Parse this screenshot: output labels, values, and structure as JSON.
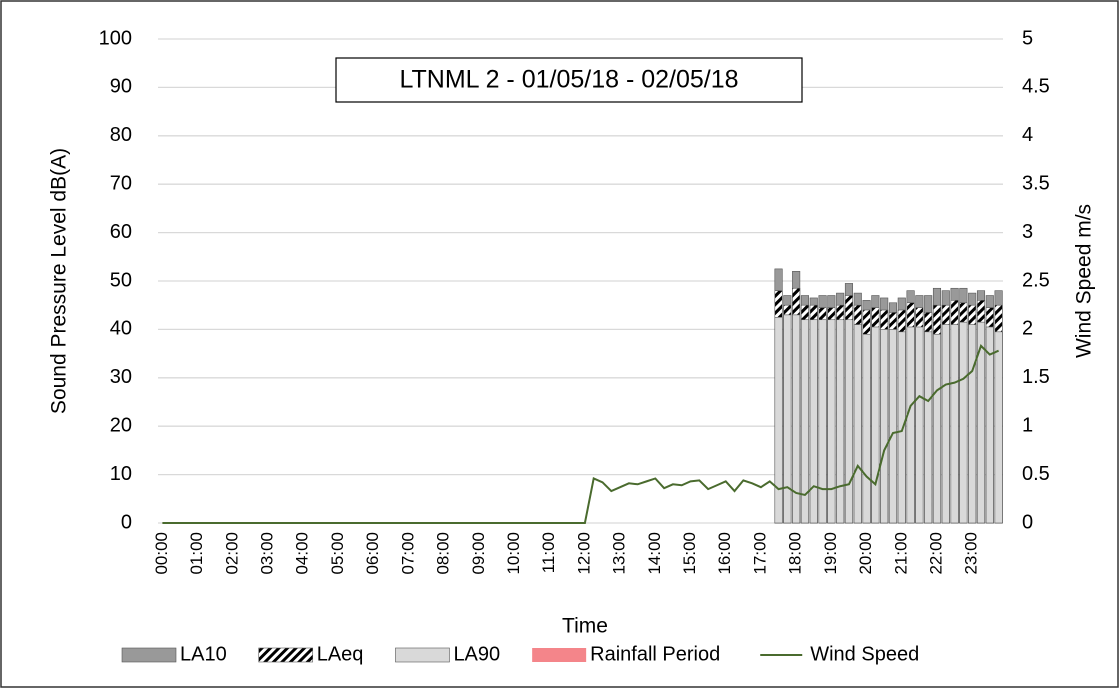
{
  "chart_data": {
    "type": "combo",
    "title": "LTNML 2 - 01/05/18 - 02/05/18",
    "x_label": "Time",
    "y_label": "Sound Pressure Level dB(A)",
    "y2_label": "Wind Speed m/s",
    "categories": [
      "00:00",
      null,
      null,
      null,
      "01:00",
      null,
      null,
      null,
      "02:00",
      null,
      null,
      null,
      "03:00",
      null,
      null,
      null,
      "04:00",
      null,
      null,
      null,
      "05:00",
      null,
      null,
      null,
      "06:00",
      null,
      null,
      null,
      "07:00",
      null,
      null,
      null,
      "08:00",
      null,
      null,
      null,
      "09:00",
      null,
      null,
      null,
      "10:00",
      null,
      null,
      null,
      "11:00",
      null,
      null,
      null,
      "12:00",
      null,
      null,
      null,
      "13:00",
      null,
      null,
      null,
      "14:00",
      null,
      null,
      null,
      "15:00",
      null,
      null,
      null,
      "16:00",
      null,
      null,
      null,
      "17:00",
      null,
      null,
      null,
      "18:00",
      null,
      null,
      null,
      "19:00",
      null,
      null,
      null,
      "20:00",
      null,
      null,
      null,
      "21:00",
      null,
      null,
      null,
      "22:00",
      null,
      null,
      null,
      "23:00",
      null,
      null,
      null
    ],
    "series": [
      {
        "name": "LA10",
        "type": "bar",
        "color": "#999999",
        "values": [
          null,
          null,
          null,
          null,
          null,
          null,
          null,
          null,
          null,
          null,
          null,
          null,
          null,
          null,
          null,
          null,
          null,
          null,
          null,
          null,
          null,
          null,
          null,
          null,
          null,
          null,
          null,
          null,
          null,
          null,
          null,
          null,
          null,
          null,
          null,
          null,
          null,
          null,
          null,
          null,
          null,
          null,
          null,
          null,
          null,
          null,
          null,
          null,
          null,
          null,
          null,
          null,
          null,
          null,
          null,
          null,
          null,
          null,
          null,
          null,
          null,
          null,
          null,
          null,
          null,
          null,
          null,
          null,
          null,
          null,
          52.5,
          47,
          52,
          47,
          46.5,
          47,
          47,
          47.5,
          49.5,
          47.5,
          46,
          47,
          46.5,
          45.5,
          46.5,
          48,
          47,
          47,
          48.5,
          48,
          48.5,
          48.5,
          47.5,
          48,
          47,
          48
        ]
      },
      {
        "name": "LAeq",
        "type": "bar",
        "color": "#000000",
        "pattern": "hatch",
        "values": [
          null,
          null,
          null,
          null,
          null,
          null,
          null,
          null,
          null,
          null,
          null,
          null,
          null,
          null,
          null,
          null,
          null,
          null,
          null,
          null,
          null,
          null,
          null,
          null,
          null,
          null,
          null,
          null,
          null,
          null,
          null,
          null,
          null,
          null,
          null,
          null,
          null,
          null,
          null,
          null,
          null,
          null,
          null,
          null,
          null,
          null,
          null,
          null,
          null,
          null,
          null,
          null,
          null,
          null,
          null,
          null,
          null,
          null,
          null,
          null,
          null,
          null,
          null,
          null,
          null,
          null,
          null,
          null,
          null,
          null,
          48,
          45,
          48.5,
          45,
          45,
          44.5,
          44.5,
          45,
          47,
          45,
          44,
          44.5,
          44,
          43.5,
          44,
          45.5,
          44.5,
          43.5,
          45,
          45,
          46,
          45.5,
          45,
          46,
          44.5,
          45
        ]
      },
      {
        "name": "LA90",
        "type": "bar",
        "color": "#d9d9d9",
        "values": [
          null,
          null,
          null,
          null,
          null,
          null,
          null,
          null,
          null,
          null,
          null,
          null,
          null,
          null,
          null,
          null,
          null,
          null,
          null,
          null,
          null,
          null,
          null,
          null,
          null,
          null,
          null,
          null,
          null,
          null,
          null,
          null,
          null,
          null,
          null,
          null,
          null,
          null,
          null,
          null,
          null,
          null,
          null,
          null,
          null,
          null,
          null,
          null,
          null,
          null,
          null,
          null,
          null,
          null,
          null,
          null,
          null,
          null,
          null,
          null,
          null,
          null,
          null,
          null,
          null,
          null,
          null,
          null,
          null,
          null,
          42.5,
          43,
          43,
          42,
          42,
          42,
          42,
          42,
          42,
          41,
          39,
          40.5,
          40,
          40,
          39.5,
          40.5,
          40.5,
          39.5,
          39,
          41,
          41,
          41.5,
          41,
          41.5,
          40.5,
          39.5
        ]
      },
      {
        "name": "Rainfall Period",
        "type": "bar",
        "color": "#f4858a"
      },
      {
        "name": "Wind Speed",
        "type": "line",
        "axis": "y2",
        "color": "#4a6b2e",
        "values": [
          0,
          0,
          0,
          0,
          0,
          0,
          0,
          0,
          0,
          0,
          0,
          0,
          0,
          0,
          0,
          0,
          0,
          0,
          0,
          0,
          0,
          0,
          0,
          0,
          0,
          0,
          0,
          0,
          0,
          0,
          0,
          0,
          0,
          0,
          0,
          0,
          0,
          0,
          0,
          0,
          0,
          0,
          0,
          0,
          0,
          0,
          0,
          0,
          0,
          0.46,
          0.42,
          0.33,
          0.37,
          0.41,
          0.4,
          0.43,
          0.46,
          0.36,
          0.4,
          0.39,
          0.43,
          0.44,
          0.35,
          0.39,
          0.43,
          0.33,
          0.44,
          0.41,
          0.37,
          0.43,
          0.35,
          0.37,
          0.31,
          0.29,
          0.38,
          0.35,
          0.35,
          0.38,
          0.4,
          0.59,
          0.48,
          0.4,
          0.75,
          0.93,
          0.95,
          1.21,
          1.31,
          1.26,
          1.37,
          1.43,
          1.45,
          1.49,
          1.57,
          1.83,
          1.74,
          1.78
        ]
      }
    ],
    "ylim": [
      0,
      100
    ],
    "yticks": [
      0,
      10,
      20,
      30,
      40,
      50,
      60,
      70,
      80,
      90,
      100
    ],
    "y2lim": [
      0,
      5
    ],
    "y2ticks": [
      0,
      0.5,
      1,
      1.5,
      2,
      2.5,
      3,
      3.5,
      4,
      4.5,
      5
    ],
    "grid": true,
    "legend": "bottom"
  }
}
